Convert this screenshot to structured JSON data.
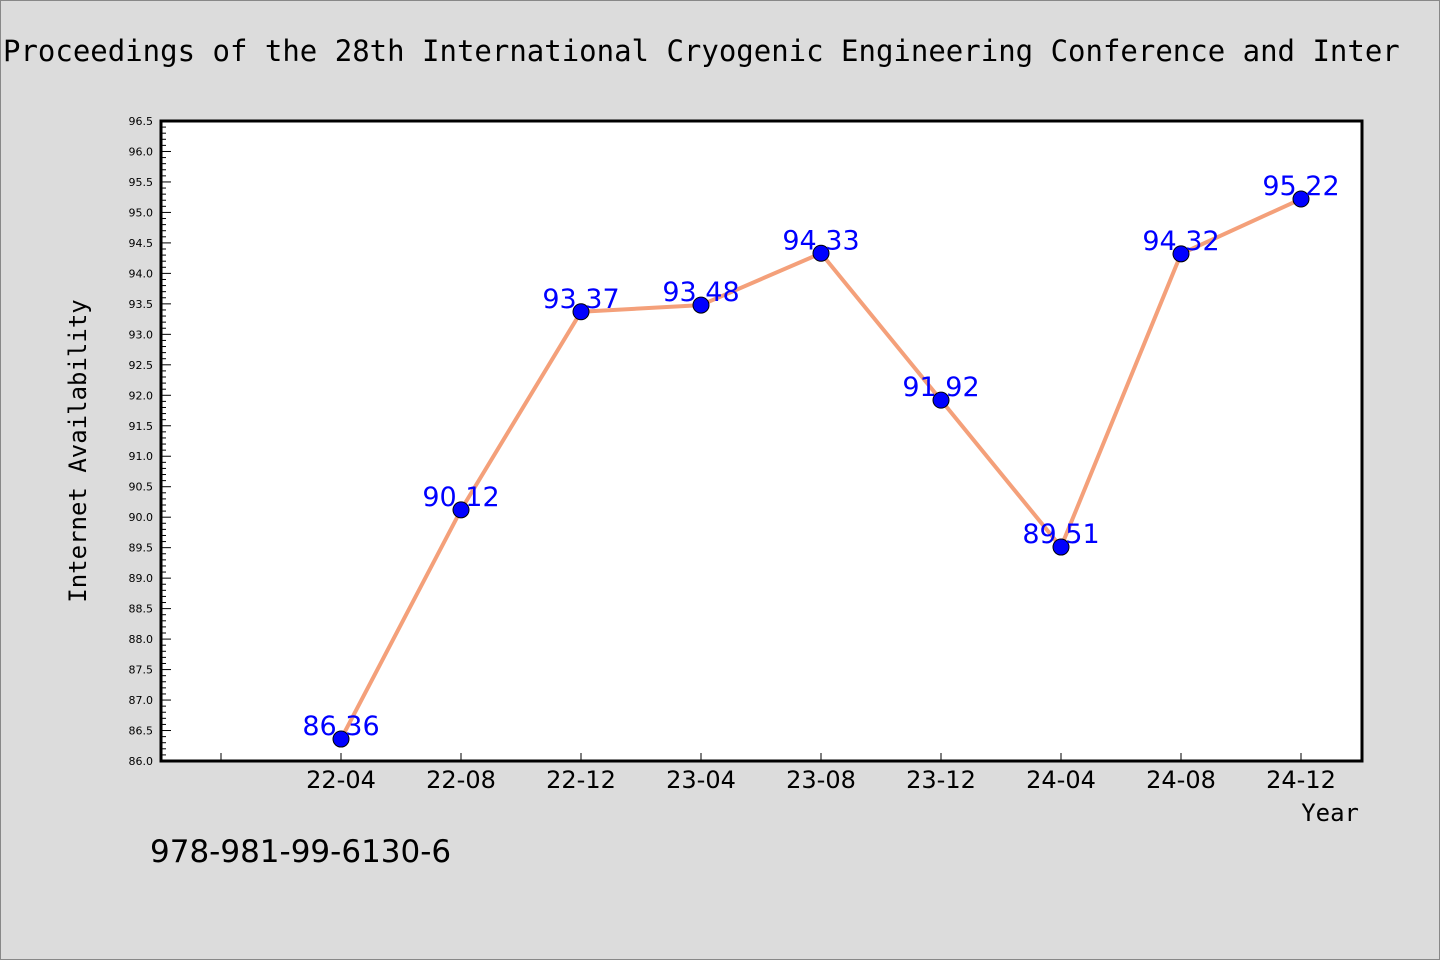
{
  "chart_data": {
    "type": "line",
    "title": "Proceedings of the 28th International Cryogenic Engineering Conference and Inter",
    "xlabel": "Year",
    "ylabel": "Internet Availability",
    "categories": [
      "22-04",
      "22-08",
      "22-12",
      "23-04",
      "23-08",
      "23-12",
      "24-04",
      "24-08",
      "24-12"
    ],
    "series": [
      {
        "values": [
          86.36,
          90.12,
          93.37,
          93.48,
          94.33,
          91.92,
          89.51,
          94.32,
          95.22
        ],
        "labels": [
          "86.36",
          "90.12",
          "93.37",
          "93.48",
          "94.33",
          "91.92",
          "89.51",
          "94.32",
          "95.22"
        ]
      }
    ],
    "ylim": [
      86.0,
      96.5
    ],
    "yticks": [
      "86.0",
      "86.5",
      "87.0",
      "87.5",
      "88.0",
      "88.5",
      "89.0",
      "89.5",
      "90.0",
      "90.5",
      "91.0",
      "91.5",
      "92.0",
      "92.5",
      "93.0",
      "93.5",
      "94.0",
      "94.5",
      "95.0",
      "95.5",
      "96.0",
      "96.5"
    ],
    "grid": false,
    "legend": "none",
    "colors": {
      "line": "#f4a07a",
      "marker": "#0000ff",
      "data_label": "#0000ff",
      "background": "#dcdcdc",
      "plot_area": "#ffffff"
    }
  },
  "footer_text": "978-981-99-6130-6"
}
